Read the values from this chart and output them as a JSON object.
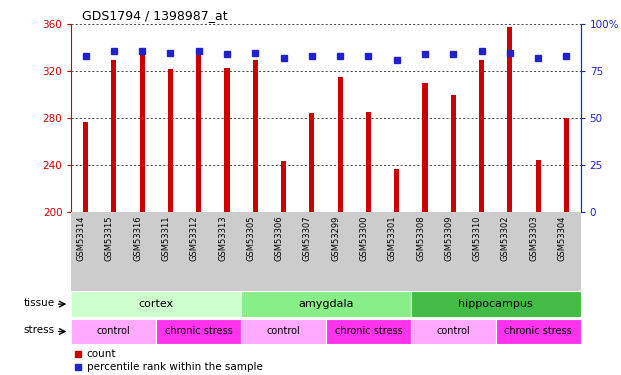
{
  "title": "GDS1794 / 1398987_at",
  "samples": [
    "GSM53314",
    "GSM53315",
    "GSM53316",
    "GSM53311",
    "GSM53312",
    "GSM53313",
    "GSM53305",
    "GSM53306",
    "GSM53307",
    "GSM53299",
    "GSM53300",
    "GSM53301",
    "GSM53308",
    "GSM53309",
    "GSM53310",
    "GSM53302",
    "GSM53303",
    "GSM53304"
  ],
  "counts": [
    277,
    330,
    335,
    322,
    335,
    323,
    330,
    243,
    284,
    315,
    285,
    237,
    310,
    300,
    330,
    358,
    244,
    280
  ],
  "percentiles": [
    83,
    86,
    86,
    85,
    86,
    84,
    85,
    82,
    83,
    83,
    83,
    81,
    84,
    84,
    86,
    85,
    82,
    83
  ],
  "ylim_left": [
    200,
    360
  ],
  "ylim_right": [
    0,
    100
  ],
  "yticks_left": [
    200,
    240,
    280,
    320,
    360
  ],
  "yticks_right": [
    0,
    25,
    50,
    75,
    100
  ],
  "bar_color": "#cc0000",
  "dot_color": "#2222cc",
  "bar_width": 0.18,
  "left_axis_color": "#cc0000",
  "right_axis_color": "#2222cc",
  "tissue_groups": [
    {
      "label": "cortex",
      "start": 0,
      "end": 6,
      "color": "#ccffcc"
    },
    {
      "label": "amygdala",
      "start": 6,
      "end": 12,
      "color": "#88ee88"
    },
    {
      "label": "hippocampus",
      "start": 12,
      "end": 18,
      "color": "#44bb44"
    }
  ],
  "stress_groups": [
    {
      "label": "control",
      "start": 0,
      "end": 3,
      "color": "#ffaaff"
    },
    {
      "label": "chronic stress",
      "start": 3,
      "end": 6,
      "color": "#ff44ee"
    },
    {
      "label": "control",
      "start": 6,
      "end": 9,
      "color": "#ffaaff"
    },
    {
      "label": "chronic stress",
      "start": 9,
      "end": 12,
      "color": "#ff44ee"
    },
    {
      "label": "control",
      "start": 12,
      "end": 15,
      "color": "#ffaaff"
    },
    {
      "label": "chronic stress",
      "start": 15,
      "end": 18,
      "color": "#ff44ee"
    }
  ]
}
